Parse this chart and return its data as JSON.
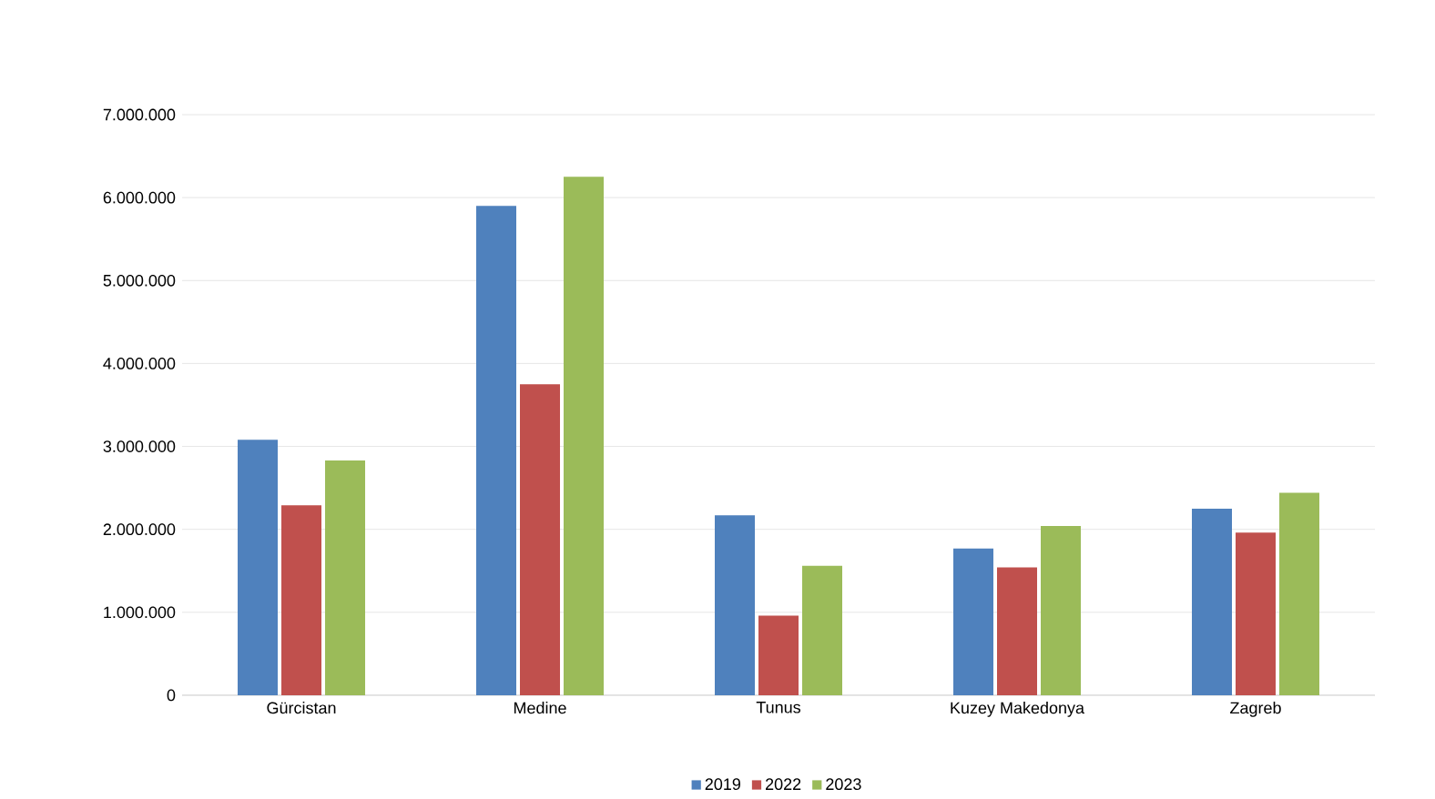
{
  "chart_data": {
    "type": "bar",
    "categories": [
      "Gürcistan",
      "Medine",
      "Tunus",
      "Kuzey Makedonya",
      "Zagreb"
    ],
    "series": [
      {
        "name": "2019",
        "color": "#4f81bd",
        "values": [
          3080000,
          5900000,
          2170000,
          1770000,
          2250000
        ]
      },
      {
        "name": "2022",
        "color": "#c0504d",
        "values": [
          2290000,
          3750000,
          960000,
          1540000,
          1960000
        ]
      },
      {
        "name": "2023",
        "color": "#9bbb59",
        "values": [
          2830000,
          6250000,
          1560000,
          2040000,
          2440000
        ]
      }
    ],
    "ylim": [
      0,
      7000000
    ],
    "yticks": [
      0,
      {
        "value": 1000000,
        "label": "1.000.000"
      },
      {
        "value": 2000000,
        "label": "2.000.000"
      },
      {
        "value": 3000000,
        "label": "3.000.000"
      },
      {
        "value": 4000000,
        "label": "4.000.000"
      },
      {
        "value": 5000000,
        "label": "5.000.000"
      },
      {
        "value": 6000000,
        "label": "6.000.000"
      },
      {
        "value": 7000000,
        "label": "7.000.000"
      }
    ],
    "grid": "y",
    "legend": "bottom"
  }
}
